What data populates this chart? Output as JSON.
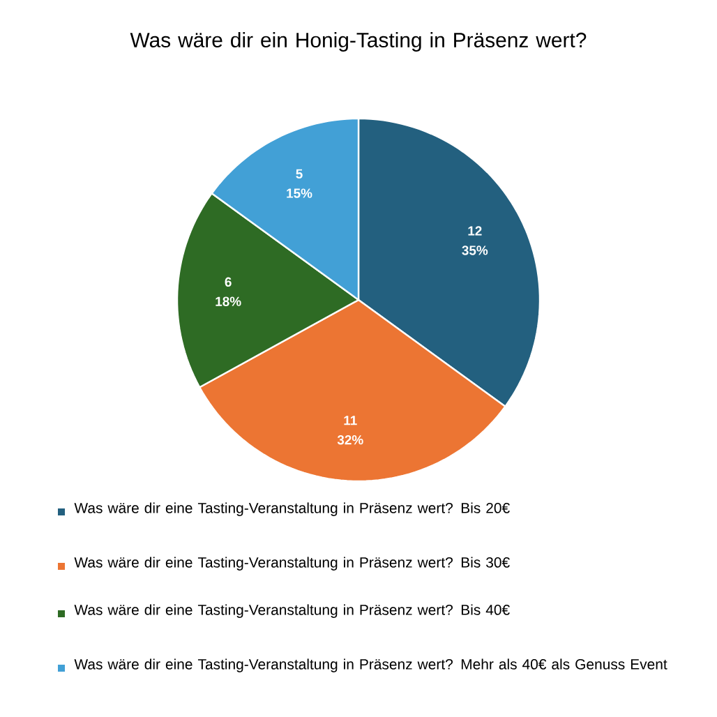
{
  "chart_data": {
    "type": "pie",
    "title": "Was wäre dir ein Honig-Tasting in Präsenz wert?",
    "categories": [
      "Was wäre dir eine Tasting-Veranstaltung in Präsenz wert? Bis 20€",
      "Was wäre dir eine Tasting-Veranstaltung in Präsenz wert? Bis 30€",
      "Was wäre dir eine Tasting-Veranstaltung in Präsenz wert? Bis 40€",
      "Was wäre dir eine Tasting-Veranstaltung in Präsenz wert? Mehr als 40€ als Genuss Event"
    ],
    "values": [
      35,
      32,
      18,
      15
    ],
    "colors": [
      "#23607f",
      "#ec7533",
      "#2e6b24",
      "#42a0d6"
    ],
    "value_labels": [
      "35%",
      "32%",
      "18%",
      "15%"
    ],
    "annotations": [
      "12",
      "11",
      "6",
      "5"
    ],
    "legend": "bottom"
  }
}
